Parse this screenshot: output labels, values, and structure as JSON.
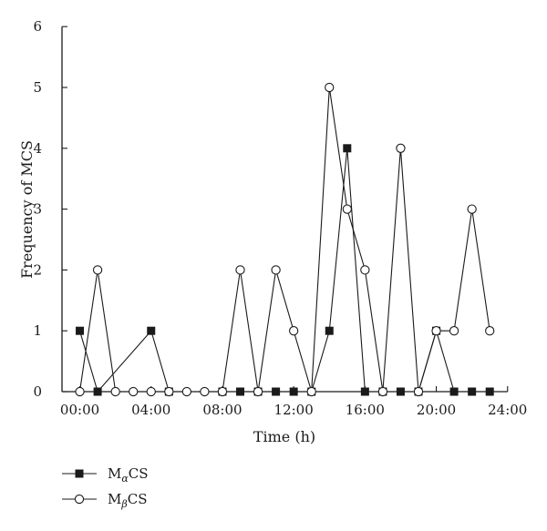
{
  "chart_data": {
    "type": "line",
    "xlabel": "Time (h)",
    "ylabel": "Frequency of MCS",
    "xlim": [
      0,
      24
    ],
    "ylim": [
      0,
      6
    ],
    "x_ticks": [
      {
        "value": 1,
        "label": "00:00"
      },
      {
        "value": 5,
        "label": "04:00"
      },
      {
        "value": 9,
        "label": "08:00"
      },
      {
        "value": 13,
        "label": "12:00"
      },
      {
        "value": 17,
        "label": "16:00"
      },
      {
        "value": 21,
        "label": "20:00"
      },
      {
        "value": 25,
        "label": "24:00"
      }
    ],
    "y_ticks": [
      0,
      1,
      2,
      3,
      4,
      5,
      6
    ],
    "grid": false,
    "legend_position": "bottom-left",
    "series": [
      {
        "name": "MαCS",
        "name_base": "M",
        "name_sub": "α",
        "name_rest": "CS",
        "marker": "square-filled",
        "points": [
          {
            "x": 1,
            "y": 1
          },
          {
            "x": 2,
            "y": 0
          },
          {
            "x": 5,
            "y": 1
          },
          {
            "x": 6,
            "y": 0
          },
          {
            "x": 9,
            "y": 0
          },
          {
            "x": 10,
            "y": 0
          },
          {
            "x": 11,
            "y": 0
          },
          {
            "x": 12,
            "y": 0
          },
          {
            "x": 13,
            "y": 0
          },
          {
            "x": 14,
            "y": 0
          },
          {
            "x": 15,
            "y": 1
          },
          {
            "x": 16,
            "y": 4
          },
          {
            "x": 17,
            "y": 0
          },
          {
            "x": 18,
            "y": 0
          },
          {
            "x": 19,
            "y": 0
          },
          {
            "x": 20,
            "y": 0
          },
          {
            "x": 21,
            "y": 1
          },
          {
            "x": 22,
            "y": 0
          },
          {
            "x": 23,
            "y": 0
          },
          {
            "x": 24,
            "y": 0
          }
        ]
      },
      {
        "name": "MβCS",
        "name_base": "M",
        "name_sub": "β",
        "name_rest": "CS",
        "marker": "circle-open",
        "points": [
          {
            "x": 1,
            "y": 0
          },
          {
            "x": 2,
            "y": 2
          },
          {
            "x": 3,
            "y": 0
          },
          {
            "x": 4,
            "y": 0
          },
          {
            "x": 5,
            "y": 0
          },
          {
            "x": 6,
            "y": 0
          },
          {
            "x": 7,
            "y": 0
          },
          {
            "x": 8,
            "y": 0
          },
          {
            "x": 9,
            "y": 0
          },
          {
            "x": 10,
            "y": 2
          },
          {
            "x": 11,
            "y": 0
          },
          {
            "x": 12,
            "y": 2
          },
          {
            "x": 13,
            "y": 1
          },
          {
            "x": 14,
            "y": 0
          },
          {
            "x": 15,
            "y": 5
          },
          {
            "x": 16,
            "y": 3
          },
          {
            "x": 17,
            "y": 2
          },
          {
            "x": 18,
            "y": 0
          },
          {
            "x": 19,
            "y": 4
          },
          {
            "x": 20,
            "y": 0
          },
          {
            "x": 21,
            "y": 1
          },
          {
            "x": 22,
            "y": 1
          },
          {
            "x": 23,
            "y": 3
          },
          {
            "x": 24,
            "y": 1
          }
        ]
      }
    ]
  }
}
